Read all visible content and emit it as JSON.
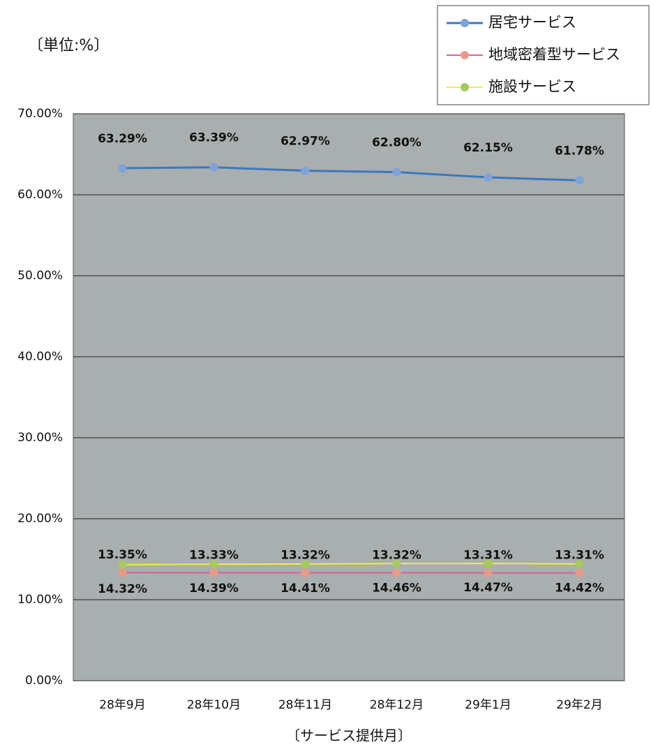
{
  "chart_data": {
    "type": "line",
    "unit_label": "〔単位:%〕",
    "x_label": "〔サービス提供月〕",
    "categories": [
      "28年9月",
      "28年10月",
      "28年11月",
      "28年12月",
      "29年1月",
      "29年2月"
    ],
    "series": [
      {
        "name": "居宅サービス",
        "color": "#3a78c0",
        "marker_color": "#7fa2d8",
        "values": [
          63.29,
          63.39,
          62.97,
          62.8,
          62.15,
          61.78
        ],
        "value_labels": [
          "63.29%",
          "63.39%",
          "62.97%",
          "62.80%",
          "62.15%",
          "61.78%"
        ]
      },
      {
        "name": "地域密着型サービス",
        "color": "#d8609a",
        "marker_color": "#e89a8a",
        "values": [
          13.35,
          13.33,
          13.32,
          13.32,
          13.31,
          13.31
        ],
        "value_labels": [
          "13.35%",
          "13.33%",
          "13.32%",
          "13.32%",
          "13.31%",
          "13.31%"
        ]
      },
      {
        "name": "施設サービス",
        "color": "#f0f040",
        "marker_color": "#a8c860",
        "values": [
          14.32,
          14.39,
          14.41,
          14.46,
          14.47,
          14.42
        ],
        "value_labels": [
          "14.32%",
          "14.39%",
          "14.41%",
          "14.46%",
          "14.47%",
          "14.42%"
        ]
      }
    ],
    "ylim": [
      0,
      70
    ],
    "yticks": [
      {
        "value": 0,
        "label": "0.00%"
      },
      {
        "value": 10,
        "label": "10.00%"
      },
      {
        "value": 20,
        "label": "20.00%"
      },
      {
        "value": 30,
        "label": "30.00%"
      },
      {
        "value": 40,
        "label": "40.00%"
      },
      {
        "value": 50,
        "label": "50.00%"
      },
      {
        "value": 60,
        "label": "60.00%"
      },
      {
        "value": 70,
        "label": "70.00%"
      }
    ],
    "grid": true,
    "legend": "top-right"
  }
}
